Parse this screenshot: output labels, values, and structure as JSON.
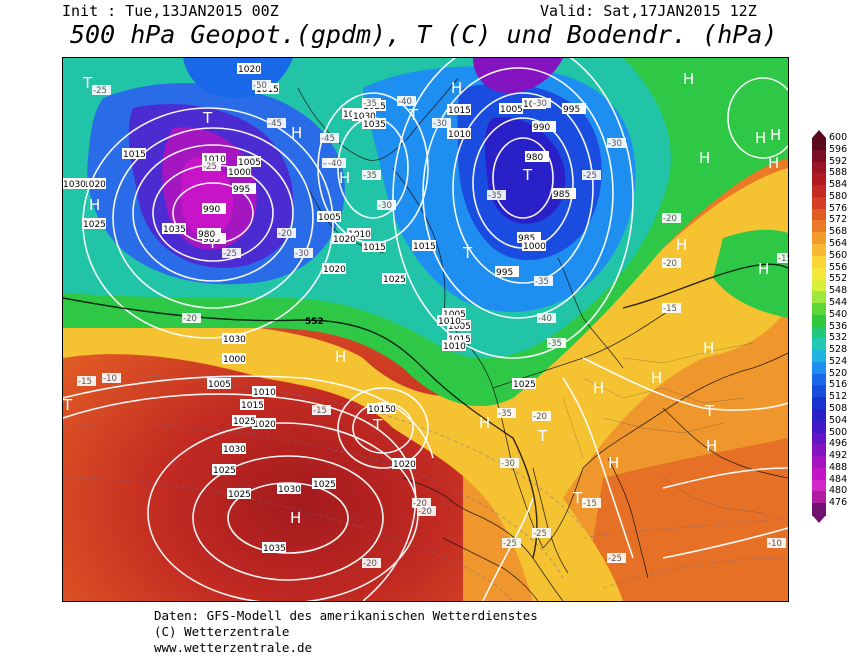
{
  "header": {
    "init": "Init : Tue,13JAN2015 00Z",
    "valid": "Valid: Sat,17JAN2015 12Z",
    "title": "500 hPa Geopot.(gpdm), T (C) und Bodendr. (hPa)"
  },
  "footer": {
    "line1": "Daten: GFS-Modell des amerikanischen Wetterdienstes",
    "line2": "(C) Wetterzentrale",
    "line3": "www.wetterzentrale.de"
  },
  "legend": {
    "values": [
      "600",
      "596",
      "592",
      "588",
      "584",
      "580",
      "576",
      "572",
      "568",
      "564",
      "560",
      "556",
      "552",
      "548",
      "544",
      "540",
      "536",
      "532",
      "528",
      "524",
      "520",
      "516",
      "512",
      "508",
      "504",
      "500",
      "496",
      "492",
      "488",
      "484",
      "480",
      "476"
    ],
    "colors": [
      "#5a0a1a",
      "#7a0f22",
      "#9a1424",
      "#b01a22",
      "#c42a22",
      "#d43e22",
      "#e05c24",
      "#ea7a26",
      "#f29a2c",
      "#f7b832",
      "#fbd436",
      "#f5e83a",
      "#d8f03c",
      "#9ee83e",
      "#5ad83a",
      "#2ec83a",
      "#22c878",
      "#22c8b4",
      "#22b4e0",
      "#1e8ef0",
      "#1a68ea",
      "#1a4ce0",
      "#1a34d0",
      "#2a20c8",
      "#4418c8",
      "#6416c4",
      "#8414c0",
      "#a414c0",
      "#c414c8",
      "#d428c8",
      "#b01ca0",
      "#701070"
    ]
  },
  "map": {
    "highs": [
      "H",
      "H",
      "H",
      "H",
      "H",
      "H",
      "H",
      "H",
      "H",
      "H",
      "H",
      "H",
      "H",
      "H",
      "H",
      "H",
      "H",
      "H",
      "H"
    ],
    "lows": [
      "T",
      "T",
      "T",
      "T",
      "T",
      "T",
      "T",
      "T",
      "T",
      "T",
      "T"
    ],
    "pressure_labels": [
      "1020",
      "1015",
      "1020",
      "1025",
      "1030",
      "1035",
      "1010",
      "1005",
      "1000",
      "995",
      "990",
      "985",
      "980",
      "1015",
      "1020",
      "1025",
      "1030",
      "1035",
      "1005",
      "1010",
      "1015",
      "1020",
      "1025",
      "1030",
      "1000",
      "1005",
      "1010",
      "1015",
      "1020",
      "1025",
      "1010",
      "1015",
      "1015",
      "1020",
      "1020",
      "1025",
      "1030",
      "1025",
      "1025",
      "1020",
      "1015",
      "1005",
      "1000",
      "995",
      "990",
      "985",
      "980",
      "1005",
      "1025",
      "1030",
      "1035",
      "1015",
      "1010",
      "995",
      "985",
      "1000",
      "1005",
      "1010"
    ],
    "temp_labels": [
      "-25",
      "-50",
      "-35",
      "-40",
      "-30",
      "-45",
      "-45",
      "-40",
      "-25",
      "-40",
      "-30",
      "-20",
      "-35",
      "-25",
      "-30",
      "-20",
      "-10",
      "-15",
      "-15",
      "-20",
      "-20",
      "-25",
      "-30",
      "-35",
      "-35",
      "-40",
      "-35",
      "-30",
      "-25",
      "-20",
      "-20",
      "-15",
      "-15",
      "-10",
      "-25",
      "-20",
      "-20",
      "-15",
      "-25",
      "-30",
      "-35"
    ],
    "contour_552": "552"
  }
}
